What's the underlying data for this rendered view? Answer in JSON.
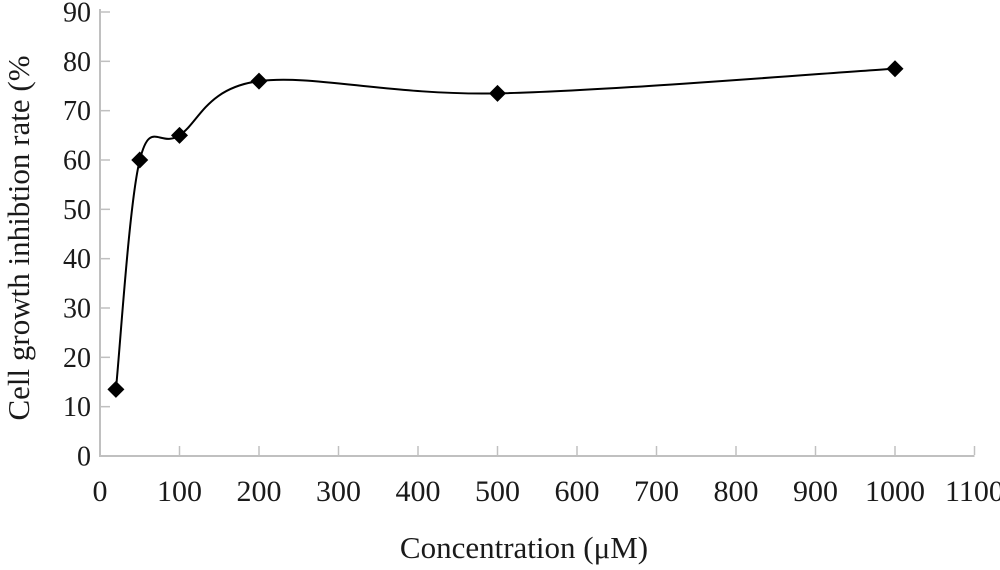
{
  "chart_data": {
    "type": "line",
    "subtype": "smoothed-scatter-with-markers",
    "title": "",
    "xlabel": "Concentration (μM)",
    "ylabel": "Cell growth inhibtion rate (%",
    "x": [
      20,
      50,
      100,
      200,
      500,
      1000
    ],
    "y": [
      13.5,
      60,
      65,
      76,
      73.5,
      78.5
    ],
    "xlim": [
      0,
      1100
    ],
    "ylim": [
      0,
      90
    ],
    "x_ticks": [
      0,
      100,
      200,
      300,
      400,
      500,
      600,
      700,
      800,
      900,
      1000,
      1100
    ],
    "y_ticks": [
      0,
      10,
      20,
      30,
      40,
      50,
      60,
      70,
      80,
      90
    ],
    "grid": false,
    "legend": false,
    "marker": "diamond",
    "colors": {
      "line": "#000000",
      "marker": "#000000",
      "axis": "#c0c0c0",
      "text": "#1a1a1a",
      "background": "#ffffff"
    }
  }
}
